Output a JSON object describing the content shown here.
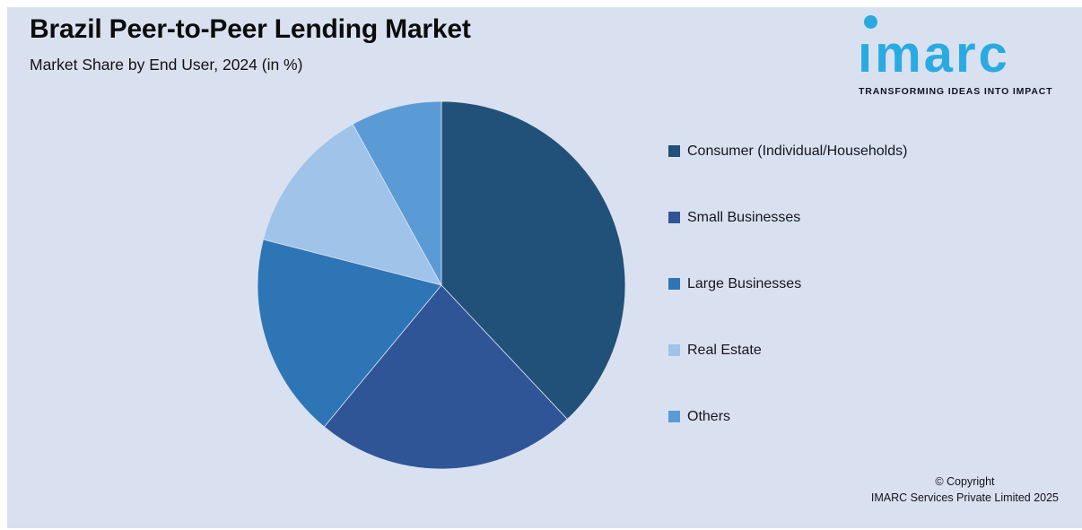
{
  "header": {
    "title": "Brazil Peer-to-Peer Lending Market",
    "subtitle": "Market Share by End User, 2024 (in %)"
  },
  "logo": {
    "brand": "imarc",
    "tagline": "TRANSFORMING IDEAS INTO IMPACT",
    "brand_color": "#29ABE2"
  },
  "chart_data": {
    "type": "pie",
    "title": "Brazil Peer-to-Peer Lending Market",
    "subtitle": "Market Share by End User, 2024 (in %)",
    "unit": "%",
    "start_angle_deg": 0,
    "direction": "clockwise",
    "legend_position": "right",
    "data_labels": false,
    "slices": [
      {
        "label": "Consumer (Individual/Households)",
        "value": 38,
        "color": "#215078"
      },
      {
        "label": "Small Businesses",
        "value": 23,
        "color": "#2F5597"
      },
      {
        "label": "Large Businesses",
        "value": 18,
        "color": "#2E75B6"
      },
      {
        "label": "Real Estate",
        "value": 13,
        "color": "#9FC3E9"
      },
      {
        "label": "Others",
        "value": 8,
        "color": "#5B9BD5"
      }
    ]
  },
  "footer": {
    "copyright_line1": "© Copyright",
    "copyright_line2": "IMARC Services Private Limited 2025"
  },
  "colors": {
    "background": "#D9E1F1",
    "frame": "#FFFFFF",
    "slice_seam": "#D9E1F1"
  }
}
